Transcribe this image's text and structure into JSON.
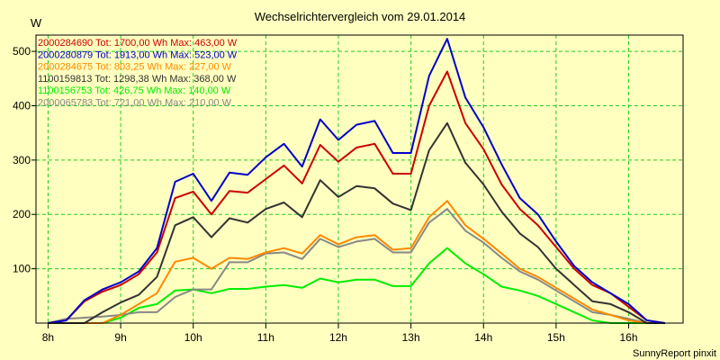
{
  "chart_data": {
    "type": "line",
    "title": "Wechselrichtervergleich vom 29.01.2014",
    "ylabel": "W",
    "footer": "SunnyReport pinxit",
    "xlim": [
      7.8333,
      16.75
    ],
    "ylim": [
      0,
      530
    ],
    "x_ticks": [
      {
        "value": 8,
        "label": "8h"
      },
      {
        "value": 9,
        "label": "9h"
      },
      {
        "value": 10,
        "label": "10h"
      },
      {
        "value": 11,
        "label": "11h"
      },
      {
        "value": 12,
        "label": "12h"
      },
      {
        "value": 13,
        "label": "13h"
      },
      {
        "value": 14,
        "label": "14h"
      },
      {
        "value": 15,
        "label": "15h"
      },
      {
        "value": 16,
        "label": "16h"
      }
    ],
    "y_ticks": [
      {
        "value": 100,
        "label": "100"
      },
      {
        "value": 200,
        "label": "200"
      },
      {
        "value": 300,
        "label": "300"
      },
      {
        "value": 400,
        "label": "400"
      },
      {
        "value": 500,
        "label": "500"
      }
    ],
    "grid": true,
    "legend_position": "top-left",
    "x": [
      8.0,
      8.25,
      8.5,
      8.75,
      9.0,
      9.25,
      9.5,
      9.75,
      10.0,
      10.25,
      10.5,
      10.75,
      11.0,
      11.25,
      11.5,
      11.75,
      12.0,
      12.25,
      12.5,
      12.75,
      13.0,
      13.25,
      13.5,
      13.75,
      14.0,
      14.25,
      14.5,
      14.75,
      15.0,
      15.25,
      15.5,
      15.75,
      16.0,
      16.25,
      16.5
    ],
    "series": [
      {
        "name": "2000284690",
        "legend": "2000284690 Tot: 1700,00 Wh Max: 463,00 W",
        "color": "#cc0000",
        "values": [
          0,
          5,
          40,
          58,
          70,
          90,
          130,
          230,
          242,
          200,
          243,
          240,
          265,
          290,
          257,
          328,
          297,
          323,
          330,
          275,
          275,
          400,
          463,
          368,
          320,
          255,
          210,
          180,
          140,
          100,
          70,
          55,
          30,
          5,
          0
        ]
      },
      {
        "name": "2000280879",
        "legend": "2000280879 Tot: 1913,00 Wh Max: 523,00 W",
        "color": "#0000cc",
        "values": [
          0,
          5,
          42,
          62,
          75,
          95,
          138,
          260,
          275,
          225,
          277,
          273,
          305,
          330,
          288,
          375,
          337,
          365,
          372,
          313,
          313,
          455,
          523,
          415,
          360,
          292,
          230,
          200,
          150,
          105,
          75,
          55,
          35,
          5,
          0
        ]
      },
      {
        "name": "2000284675",
        "legend": "2000284675 Tot: 803,25 Wh Max: 227,00 W",
        "color": "#ff8800",
        "values": [
          0,
          0,
          0,
          0,
          15,
          35,
          55,
          113,
          120,
          100,
          120,
          118,
          130,
          138,
          128,
          162,
          145,
          158,
          162,
          135,
          138,
          195,
          225,
          180,
          155,
          128,
          100,
          85,
          65,
          45,
          25,
          15,
          5,
          0,
          0
        ]
      },
      {
        "name": "1100159813",
        "legend": "1100159813 Tot: 1298,38 Wh Max: 368,00 W",
        "color": "#333333",
        "values": [
          0,
          0,
          0,
          20,
          38,
          52,
          85,
          180,
          195,
          158,
          193,
          185,
          210,
          222,
          195,
          263,
          232,
          252,
          248,
          220,
          208,
          318,
          368,
          295,
          255,
          205,
          165,
          140,
          100,
          70,
          40,
          35,
          20,
          0,
          0
        ]
      },
      {
        "name": "1100156753",
        "legend": "1100156753 Tot: 426,75 Wh Max: 140,00 W",
        "color": "#00ee00",
        "values": [
          0,
          0,
          0,
          0,
          10,
          28,
          35,
          60,
          62,
          55,
          63,
          63,
          67,
          70,
          65,
          82,
          75,
          80,
          80,
          68,
          68,
          110,
          138,
          110,
          90,
          67,
          60,
          50,
          35,
          20,
          5,
          0,
          0,
          0,
          0
        ]
      },
      {
        "name": "2000065783",
        "legend": "2000065783 Tot: 721,00 Wh Max: 210,00 W",
        "color": "#888888",
        "values": [
          0,
          8,
          10,
          12,
          15,
          20,
          20,
          48,
          62,
          62,
          112,
          112,
          128,
          130,
          118,
          155,
          140,
          150,
          155,
          130,
          130,
          185,
          210,
          170,
          148,
          120,
          95,
          80,
          60,
          40,
          20,
          15,
          8,
          0,
          0
        ]
      }
    ]
  }
}
